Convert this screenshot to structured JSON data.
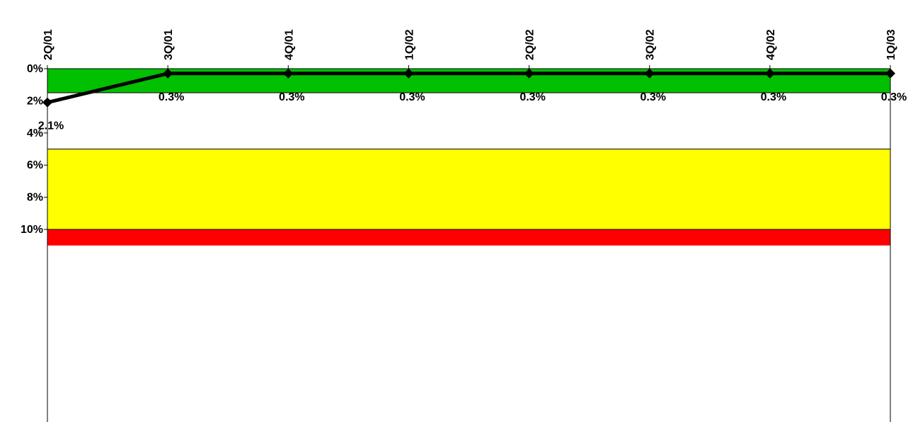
{
  "chart_data": {
    "type": "line",
    "categories": [
      "2Q/01",
      "3Q/01",
      "4Q/01",
      "1Q/02",
      "2Q/02",
      "3Q/02",
      "4Q/02",
      "1Q/03"
    ],
    "series": [
      {
        "values": [
          2.1,
          0.3,
          0.3,
          0.3,
          0.3,
          0.3,
          0.3,
          0.3
        ],
        "data_labels": [
          "2.1%",
          "0.3%",
          "0.3%",
          "0.3%",
          "0.3%",
          "0.3%",
          "0.3%",
          "0.3%"
        ],
        "color": "#000000",
        "marker": "diamond"
      }
    ],
    "y_axis": {
      "inverted": true,
      "range": [
        0,
        11
      ],
      "ticks": [
        0,
        2,
        4,
        6,
        8,
        10
      ],
      "tick_labels": [
        "0%",
        "2%",
        "4%",
        "6%",
        "8%",
        "10%"
      ]
    },
    "x_axis_position": "top",
    "bands": [
      {
        "from": 0,
        "to": 1.5,
        "color": "#00c000"
      },
      {
        "from": 1.5,
        "to": 5,
        "color": "#ffffff"
      },
      {
        "from": 5,
        "to": 10,
        "color": "#ffff00"
      },
      {
        "from": 10,
        "to": 11,
        "color": "#ff0000"
      }
    ],
    "title": "",
    "xlabel": "",
    "ylabel": ""
  }
}
